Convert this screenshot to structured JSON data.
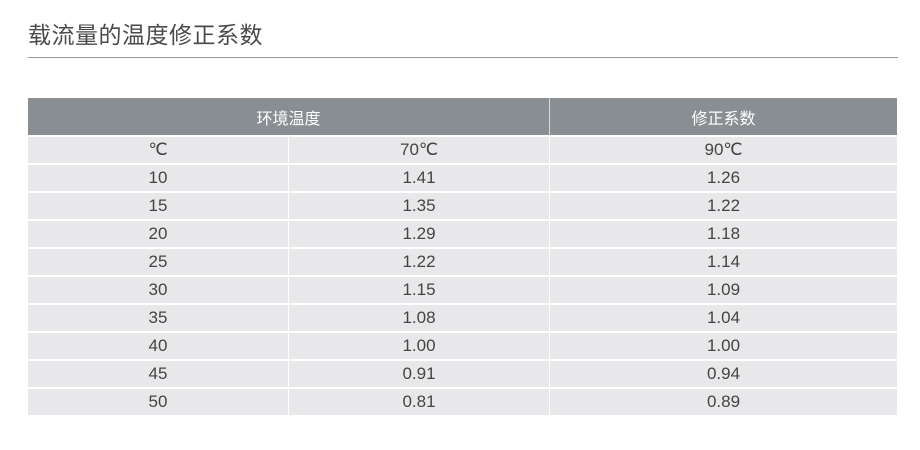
{
  "title": "载流量的温度修正系数",
  "table": {
    "headers": [
      "环境温度",
      "修正系数"
    ],
    "subheader": [
      "℃",
      "70℃",
      "90℃"
    ],
    "rows": [
      [
        "10",
        "1.41",
        "1.26"
      ],
      [
        "15",
        "1.35",
        "1.22"
      ],
      [
        "20",
        "1.29",
        "1.18"
      ],
      [
        "25",
        "1.22",
        "1.14"
      ],
      [
        "30",
        "1.15",
        "1.09"
      ],
      [
        "35",
        "1.08",
        "1.04"
      ],
      [
        "40",
        "1.00",
        "1.00"
      ],
      [
        "45",
        "0.91",
        "0.94"
      ],
      [
        "50",
        "0.81",
        "0.89"
      ]
    ]
  }
}
